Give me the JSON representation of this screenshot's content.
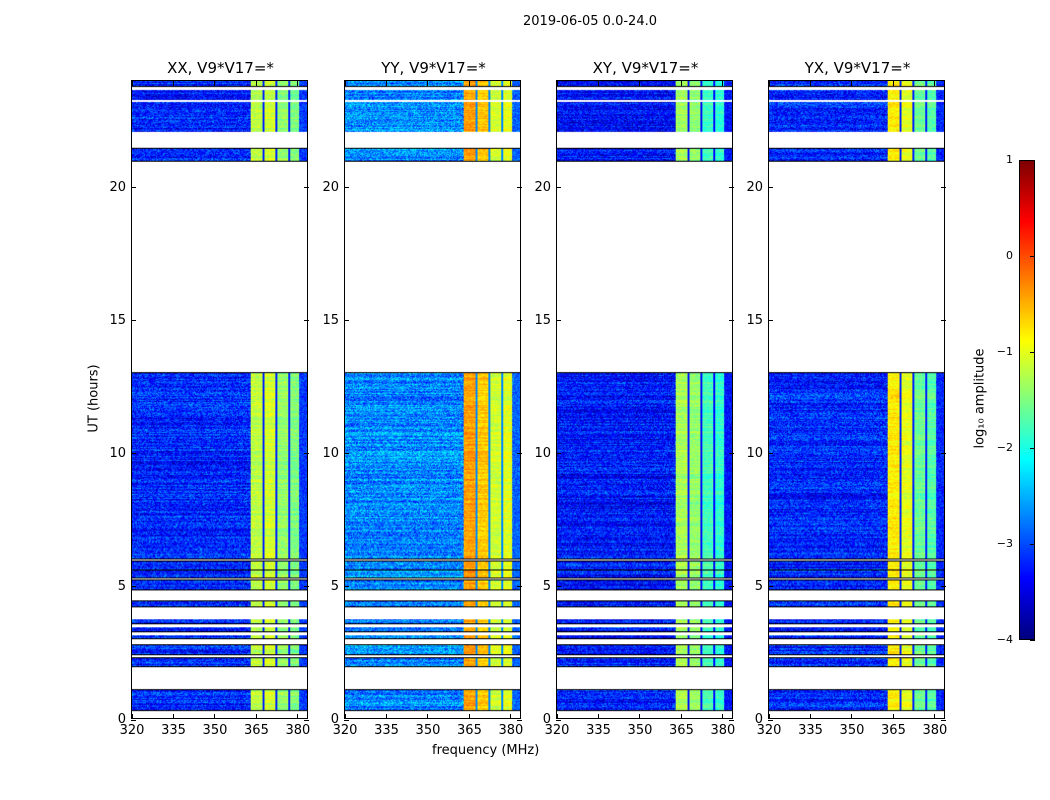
{
  "suptitle": "2019-06-05 0.0-24.0",
  "chart_data": [
    {
      "type": "heatmap",
      "title": "XX, V9*V17=*",
      "xlabel": "",
      "ylabel": "UT (hours)",
      "xlim": [
        320,
        384
      ],
      "ylim": [
        0,
        24
      ],
      "xticks": [
        320,
        335,
        350,
        365,
        380
      ],
      "yticks": [
        0,
        5,
        10,
        15,
        20
      ],
      "background_log_amp": -3.2,
      "subband_log_amp": [
        -1.2,
        -1.1,
        -1.4,
        -1.5
      ],
      "high_edge_log_amp": -3.1
    },
    {
      "type": "heatmap",
      "title": "YY, V9*V17=*",
      "xlabel": "frequency (MHz)",
      "ylabel": "",
      "xlim": [
        320,
        384
      ],
      "ylim": [
        0,
        24
      ],
      "xticks": [
        320,
        335,
        350,
        365,
        380
      ],
      "yticks": [
        0,
        5,
        10,
        15,
        20
      ],
      "background_log_amp": -2.7,
      "subband_log_amp": [
        -0.4,
        -0.6,
        -1.1,
        -1.0
      ],
      "high_edge_log_amp": -2.9
    },
    {
      "type": "heatmap",
      "title": "XY, V9*V17=*",
      "xlabel": "",
      "ylabel": "",
      "xlim": [
        320,
        384
      ],
      "ylim": [
        0,
        24
      ],
      "xticks": [
        320,
        335,
        350,
        365,
        380
      ],
      "yticks": [
        0,
        5,
        10,
        15,
        20
      ],
      "background_log_amp": -3.3,
      "subband_log_amp": [
        -1.3,
        -1.4,
        -1.8,
        -1.9
      ],
      "high_edge_log_amp": -3.3
    },
    {
      "type": "heatmap",
      "title": "YX, V9*V17=*",
      "xlabel": "",
      "ylabel": "",
      "xlim": [
        320,
        384
      ],
      "ylim": [
        0,
        24
      ],
      "xticks": [
        320,
        335,
        350,
        365,
        380
      ],
      "yticks": [
        0,
        5,
        10,
        15,
        20
      ],
      "background_log_amp": -3.2,
      "subband_log_amp": [
        -0.8,
        -1.0,
        -1.6,
        -1.7
      ],
      "high_edge_log_amp": -3.2
    }
  ],
  "data_time_segments_hours": [
    [
      0.3,
      1.05
    ],
    [
      1.95,
      2.25
    ],
    [
      2.4,
      2.75
    ],
    [
      3.0,
      3.1
    ],
    [
      3.25,
      3.4
    ],
    [
      3.55,
      3.7
    ],
    [
      4.2,
      4.4
    ],
    [
      4.85,
      5.2
    ],
    [
      5.3,
      5.55
    ],
    [
      5.6,
      5.9
    ],
    [
      6.0,
      13.0
    ],
    [
      21.0,
      21.45
    ],
    [
      22.1,
      23.2
    ],
    [
      23.3,
      23.65
    ],
    [
      23.8,
      24.0
    ]
  ],
  "bright_subbands_mhz": [
    [
      363.5,
      367.6
    ],
    [
      368.3,
      372.3
    ],
    [
      373.0,
      377.3
    ],
    [
      378.0,
      381.0
    ]
  ],
  "colorbar": {
    "label": "log₁₀ amplitude",
    "range": [
      -4,
      1
    ],
    "ticks": [
      "1",
      "0",
      "−1",
      "−2",
      "−3",
      "−4"
    ],
    "tick_values": [
      1,
      0,
      -1,
      -2,
      -3,
      -4
    ],
    "colormap": "jet"
  }
}
